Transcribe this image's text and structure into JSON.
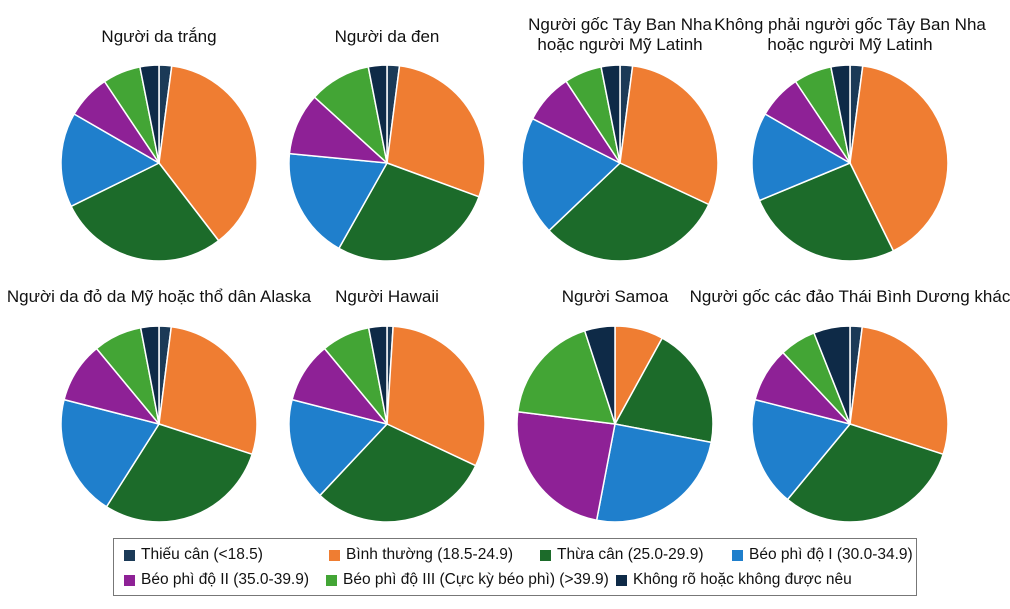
{
  "chart_data": {
    "type": "pie",
    "categories": [
      "Thiếu cân (<18.5)",
      "Bình thường (18.5-24.9)",
      "Thừa cân (25.0-29.9)",
      "Béo phì độ I (30.0-34.9)",
      "Béo phì độ II (35.0-39.9)",
      "Béo phì độ III (Cực kỳ béo phì) (>39.9)",
      "Không rõ hoặc không được nêu"
    ],
    "colors": [
      "#1b3a57",
      "#ef7d32",
      "#1c6b2a",
      "#1f7fcc",
      "#8e2196",
      "#43a535",
      "#0e2a47"
    ],
    "charts": [
      {
        "title": [
          "Người da trắng"
        ],
        "values": [
          2,
          36,
          27,
          15,
          7,
          6,
          3
        ]
      },
      {
        "title": [
          "Người da đen"
        ],
        "values": [
          2,
          28,
          27,
          18,
          10,
          10,
          3
        ]
      },
      {
        "title": [
          "Người gốc Tây Ban Nha",
          "hoặc người Mỹ Latinh"
        ],
        "values": [
          2,
          29,
          30,
          19,
          8,
          6,
          3
        ]
      },
      {
        "title": [
          "Không phải người gốc Tây Ban Nha",
          "hoặc người Mỹ Latinh"
        ],
        "values": [
          2,
          39,
          25,
          14,
          7,
          6,
          3
        ]
      },
      {
        "title": [
          "Người da đỏ da Mỹ hoặc thổ dân Alaska"
        ],
        "values": [
          2,
          28,
          29,
          20,
          10,
          8,
          3
        ]
      },
      {
        "title": [
          "Người Hawaii"
        ],
        "values": [
          1,
          31,
          30,
          17,
          10,
          8,
          3
        ]
      },
      {
        "title": [
          "Người Samoa"
        ],
        "values": [
          0,
          8,
          20,
          25,
          24,
          18,
          5
        ]
      },
      {
        "title": [
          "Người gốc các đảo Thái Bình Dương khác"
        ],
        "values": [
          2,
          28,
          31,
          18,
          9,
          6,
          6
        ]
      }
    ]
  }
}
